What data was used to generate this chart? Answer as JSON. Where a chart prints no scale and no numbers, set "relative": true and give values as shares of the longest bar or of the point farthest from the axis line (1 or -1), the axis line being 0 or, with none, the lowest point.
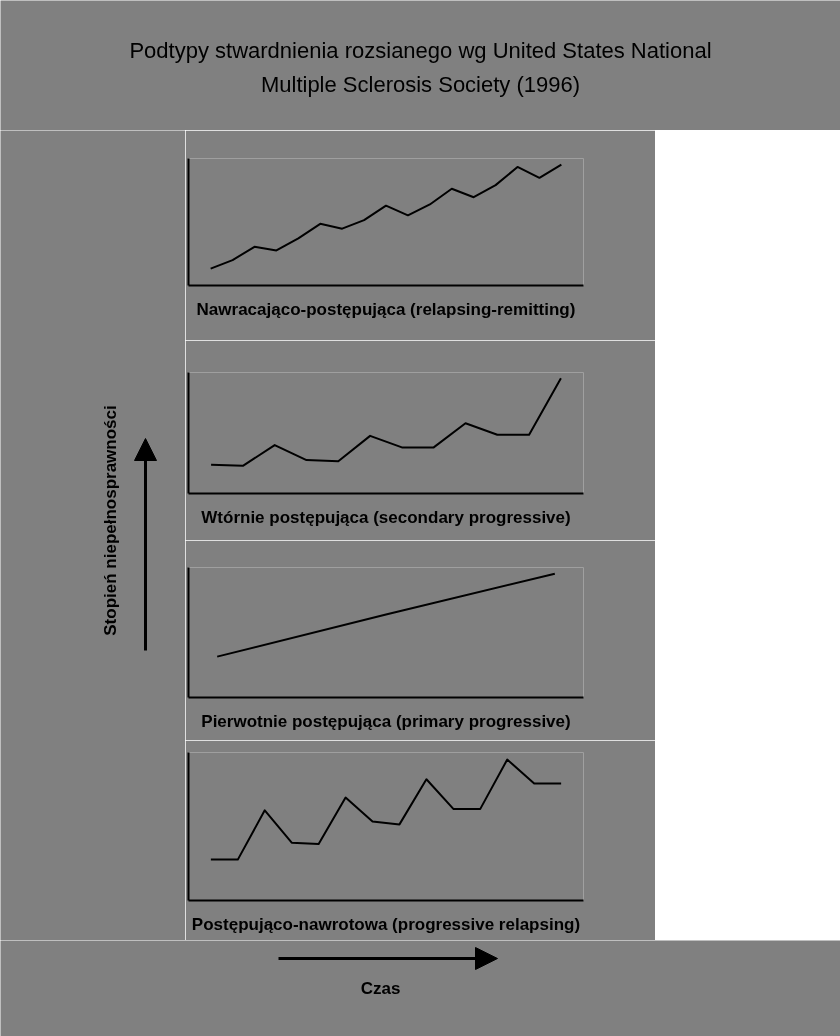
{
  "chart_data": [
    {
      "type": "line",
      "title": "Podtypy stwardnienia rozsianego wg United States National Multiple Sclerosis Society (1996)",
      "xlabel": "Nawracająco-postępująca (relapsing-remitting)",
      "relative": true,
      "categories": [
        null,
        null,
        null,
        null,
        null,
        null,
        null,
        null,
        null,
        null,
        null,
        null,
        null,
        null,
        null,
        null,
        null
      ],
      "series": [
        {
          "color": "#000000",
          "values": [
            0.14,
            0.21,
            0.32,
            0.29,
            0.39,
            0.51,
            0.47,
            0.54,
            0.66,
            0.58,
            0.67,
            0.8,
            0.73,
            0.83,
            0.98,
            0.89,
            1
          ]
        }
      ]
    },
    {
      "type": "line",
      "xlabel": "Wtórnie postępująca (secondary progressive)",
      "ylabel": "Stopień niepełnosprawności",
      "relative": true,
      "categories": [
        null,
        null,
        null,
        null,
        null,
        null,
        null,
        null,
        null,
        null,
        null,
        null
      ],
      "series": [
        {
          "color": "#000000",
          "values": [
            0.25,
            0.24,
            0.42,
            0.29,
            0.28,
            0.5,
            0.4,
            0.4,
            0.61,
            0.51,
            0.51,
            1
          ]
        }
      ]
    },
    {
      "type": "line",
      "xlabel": "Pierwotnie postępująca (primary progressive)",
      "relative": true,
      "categories": [
        null,
        null,
        null
      ],
      "series": [
        {
          "color": "#000000",
          "values": [
            0.33,
            0.67,
            1
          ]
        }
      ]
    },
    {
      "type": "line",
      "xlabel": "Postępująco-nawrotowa (progressive relapsing)",
      "relative": true,
      "annotations": [
        "Czas"
      ],
      "categories": [
        null,
        null,
        null,
        null,
        null,
        null,
        null,
        null,
        null,
        null,
        null,
        null,
        null,
        null
      ],
      "series": [
        {
          "color": "#000000",
          "values": [
            0.29,
            0.29,
            0.64,
            0.41,
            0.4,
            0.73,
            0.56,
            0.54,
            0.86,
            0.65,
            0.65,
            1,
            0.83,
            0.83
          ]
        }
      ]
    }
  ]
}
